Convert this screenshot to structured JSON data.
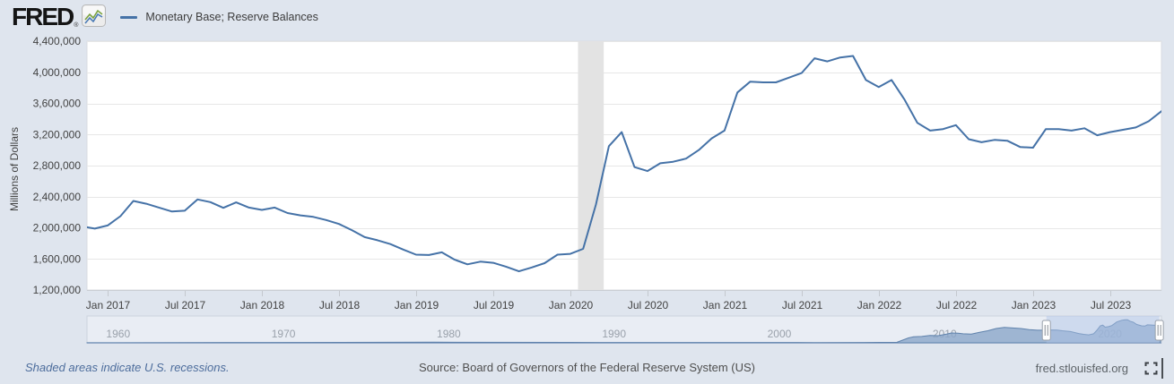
{
  "header": {
    "logo_text": "FRED",
    "logo_registered": "®",
    "legend": {
      "label": "Monetary Base; Reserve Balances"
    }
  },
  "chart_data": [
    {
      "type": "line",
      "title": "Monetary Base; Reserve Balances",
      "ylabel": "Millions of Dollars",
      "frequency": "monthly",
      "x_start": "2016-11",
      "x_end": "2023-11",
      "ylim": [
        1200000,
        4400000
      ],
      "y_tick_labels": [
        "1,200,000",
        "1,600,000",
        "2,000,000",
        "2,400,000",
        "2,800,000",
        "3,200,000",
        "3,600,000",
        "4,000,000",
        "4,400,000"
      ],
      "x_tick_labels": [
        "Jan 2017",
        "Jul 2017",
        "Jan 2018",
        "Jul 2018",
        "Jan 2019",
        "Jul 2019",
        "Jan 2020",
        "Jul 2020",
        "Jan 2021",
        "Jul 2021",
        "Jan 2022",
        "Jul 2022",
        "Jan 2023",
        "Jul 2023"
      ],
      "values": [
        2020000,
        1990000,
        2030000,
        2150000,
        2345000,
        2310000,
        2260000,
        2210000,
        2220000,
        2365000,
        2330000,
        2257000,
        2327000,
        2260000,
        2230000,
        2260000,
        2190000,
        2160000,
        2140000,
        2100000,
        2050000,
        1970000,
        1880000,
        1840000,
        1790000,
        1720000,
        1655000,
        1650000,
        1685000,
        1590000,
        1530000,
        1565000,
        1550000,
        1500000,
        1440000,
        1490000,
        1545000,
        1655000,
        1665000,
        1730000,
        2300000,
        3050000,
        3230000,
        2780000,
        2730000,
        2830000,
        2850000,
        2890000,
        3000000,
        3150000,
        3250000,
        3740000,
        3880000,
        3870000,
        3870000,
        3930000,
        3990000,
        4180000,
        4140000,
        4190000,
        4210000,
        3900000,
        3810000,
        3900000,
        3650000,
        3350000,
        3250000,
        3270000,
        3320000,
        3140000,
        3100000,
        3130000,
        3120000,
        3040000,
        3030000,
        3270000,
        3270000,
        3250000,
        3280000,
        3190000,
        3230000,
        3260000,
        3290000,
        3370000,
        3500000
      ],
      "line_color": "#4572a7",
      "recession_bands": [
        {
          "start": "2020-02",
          "end": "2020-04"
        }
      ],
      "grid": true,
      "legend_position": "top-left"
    },
    {
      "type": "area",
      "role": "range-selector-overview",
      "x_tick_labels": [
        "1960",
        "1970",
        "1980",
        "1990",
        "2000",
        "2010",
        "2020"
      ],
      "x": [
        1959,
        1970,
        1980,
        1990,
        1995,
        2000,
        2003,
        2006,
        2008,
        2008.7,
        2009,
        2009.5,
        2010,
        2010.5,
        2011,
        2011.3,
        2011.7,
        2012,
        2012.5,
        2013,
        2013.5,
        2014,
        2014.5,
        2015,
        2015.5,
        2016,
        2016.5,
        2017,
        2017.3,
        2017.7,
        2018,
        2018.5,
        2019,
        2019.3,
        2019.6,
        2019.9,
        2020.1,
        2020.3,
        2020.45,
        2020.6,
        2020.8,
        2021,
        2021.3,
        2021.6,
        2021.8,
        2021.95,
        2022.1,
        2022.3,
        2022.5,
        2022.8,
        2023,
        2023.15,
        2023.4,
        2023.6,
        2023.8,
        2023.95
      ],
      "values": [
        20000,
        60000,
        110000,
        60000,
        60000,
        60000,
        50000,
        60000,
        100000,
        900000,
        1100000,
        1150000,
        1350000,
        1300000,
        1600000,
        1800000,
        1750000,
        1650000,
        1600000,
        1900000,
        2200000,
        2600000,
        2800000,
        2700000,
        2600000,
        2400000,
        2300000,
        2300000,
        2350000,
        2330000,
        2200000,
        2050000,
        1700000,
        1550000,
        1450000,
        1650000,
        2300000,
        3100000,
        3230000,
        2850000,
        2950000,
        3150000,
        3800000,
        4100000,
        4200000,
        4200000,
        3950000,
        3750000,
        3350000,
        3100000,
        3050000,
        3270000,
        3250000,
        3200000,
        3370000,
        3500000
      ],
      "selected_range": [
        "2017-01",
        "2023-11"
      ],
      "area_color": "#8ba6c9"
    }
  ],
  "footer": {
    "recession_note": "Shaded areas indicate U.S. recessions.",
    "source": "Source: Board of Governors of the Federal Reserve System (US)",
    "site": "fred.stlouisfed.org"
  }
}
